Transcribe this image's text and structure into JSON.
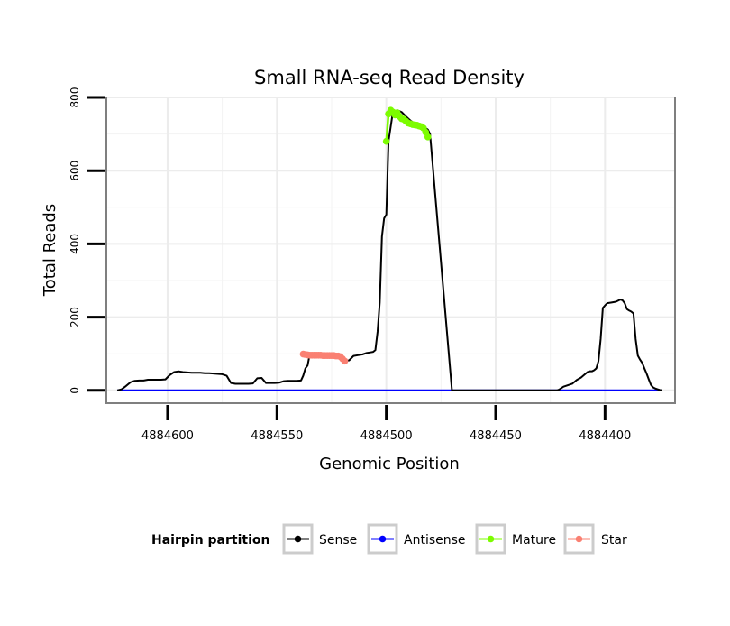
{
  "chart_data": {
    "type": "line",
    "title": "Small RNA-seq Read Density",
    "xlabel": "Genomic Position",
    "ylabel": "Total Reads",
    "x_reversed": true,
    "xlim": [
      4884628,
      4884368
    ],
    "ylim": [
      -35,
      800
    ],
    "x_ticks": [
      4884600,
      4884550,
      4884500,
      4884450,
      4884400
    ],
    "x_tick_labels": [
      "4884600",
      "4884550",
      "4884500",
      "4884450",
      "4884400"
    ],
    "y_ticks": [
      0,
      200,
      400,
      600,
      800
    ],
    "y_tick_labels": [
      "0",
      "200",
      "400",
      "600",
      "800"
    ],
    "grid": true,
    "legend": {
      "title": "Hairpin partition",
      "position": "bottom",
      "entries": [
        {
          "name": "Sense",
          "color": "#000000"
        },
        {
          "name": "Antisense",
          "color": "#0000ff"
        },
        {
          "name": "Mature",
          "color": "#7cfc00"
        },
        {
          "name": "Star",
          "color": "#fa8072"
        }
      ]
    },
    "series": [
      {
        "name": "Sense",
        "color": "#000000",
        "markers": false,
        "x": [
          4884623,
          4884621,
          4884619,
          4884617,
          4884615,
          4884613,
          4884611,
          4884609,
          4884607,
          4884605,
          4884603,
          4884601,
          4884599,
          4884597,
          4884595,
          4884593,
          4884591,
          4884589,
          4884587,
          4884585,
          4884583,
          4884581,
          4884579,
          4884577,
          4884575,
          4884573,
          4884571,
          4884569,
          4884567,
          4884565,
          4884563,
          4884561,
          4884559,
          4884557,
          4884555,
          4884553,
          4884551,
          4884549,
          4884547,
          4884545,
          4884543,
          4884541,
          4884539,
          4884538,
          4884537,
          4884536,
          4884535,
          4884533,
          4884531,
          4884529,
          4884527,
          4884525,
          4884523,
          4884521,
          4884520,
          4884519,
          4884517,
          4884515,
          4884513,
          4884511,
          4884509,
          4884507,
          4884506,
          4884505,
          4884504,
          4884503,
          4884502,
          4884501,
          4884500,
          4884499,
          4884498,
          4884497,
          4884495,
          4884493,
          4884491,
          4884489,
          4884487,
          4884485,
          4884483,
          4884482,
          4884481,
          4884480,
          4884470,
          4884460,
          4884450,
          4884440,
          4884430,
          4884422,
          4884421,
          4884419,
          4884417,
          4884415,
          4884413,
          4884411,
          4884409,
          4884408,
          4884407,
          4884406,
          4884405,
          4884404,
          4884403,
          4884402,
          4884401,
          4884400,
          4884399,
          4884397,
          4884395,
          4884393,
          4884392,
          4884391,
          4884390,
          4884389,
          4884388,
          4884387,
          4884386,
          4884385,
          4884384,
          4884383,
          4884382,
          4884381,
          4884380,
          4884379,
          4884378,
          4884377,
          4884376,
          4884375,
          4884374
        ],
        "y": [
          0,
          3,
          12,
          22,
          26,
          27,
          27,
          29,
          29,
          29,
          29,
          30,
          42,
          50,
          52,
          50,
          49,
          48,
          48,
          48,
          47,
          47,
          46,
          45,
          44,
          40,
          20,
          18,
          18,
          18,
          18,
          19,
          33,
          34,
          20,
          20,
          20,
          21,
          25,
          26,
          26,
          26,
          27,
          40,
          60,
          68,
          99,
          97,
          96,
          96,
          96,
          95,
          95,
          93,
          86,
          80,
          82,
          94,
          96,
          98,
          102,
          104,
          105,
          110,
          160,
          240,
          420,
          470,
          480,
          680,
          720,
          760,
          765,
          760,
          748,
          737,
          728,
          725,
          720,
          716,
          712,
          700,
          0,
          0,
          0,
          0,
          0,
          0,
          2,
          10,
          14,
          18,
          28,
          35,
          45,
          50,
          52,
          52,
          55,
          60,
          80,
          140,
          225,
          232,
          238,
          240,
          242,
          248,
          246,
          238,
          222,
          218,
          215,
          210,
          140,
          95,
          84,
          75,
          60,
          46,
          30,
          15,
          8,
          5,
          3,
          1,
          0
        ]
      },
      {
        "name": "Antisense",
        "color": "#0000ff",
        "markers": false,
        "x": [
          4884623,
          4884374
        ],
        "y": [
          0,
          0
        ]
      },
      {
        "name": "Mature",
        "color": "#7cfc00",
        "markers": true,
        "x": [
          4884500,
          4884499,
          4884498,
          4884497,
          4884496,
          4884495,
          4884494,
          4884493,
          4884492,
          4884491,
          4884490,
          4884489,
          4884488,
          4884487,
          4884486,
          4884485,
          4884484,
          4884483,
          4884482,
          4884481
        ],
        "y": [
          680,
          755,
          765,
          760,
          752,
          758,
          748,
          742,
          740,
          735,
          730,
          728,
          726,
          725,
          724,
          722,
          720,
          716,
          705,
          692
        ]
      },
      {
        "name": "Star",
        "color": "#fa8072",
        "markers": true,
        "x": [
          4884538,
          4884537,
          4884536,
          4884535,
          4884534,
          4884533,
          4884532,
          4884531,
          4884530,
          4884529,
          4884528,
          4884527,
          4884526,
          4884525,
          4884524,
          4884523,
          4884522,
          4884521,
          4884520,
          4884519
        ],
        "y": [
          99,
          98,
          97,
          96,
          96,
          96,
          96,
          96,
          96,
          95,
          95,
          95,
          95,
          95,
          95,
          94,
          94,
          92,
          86,
          80
        ]
      }
    ]
  }
}
